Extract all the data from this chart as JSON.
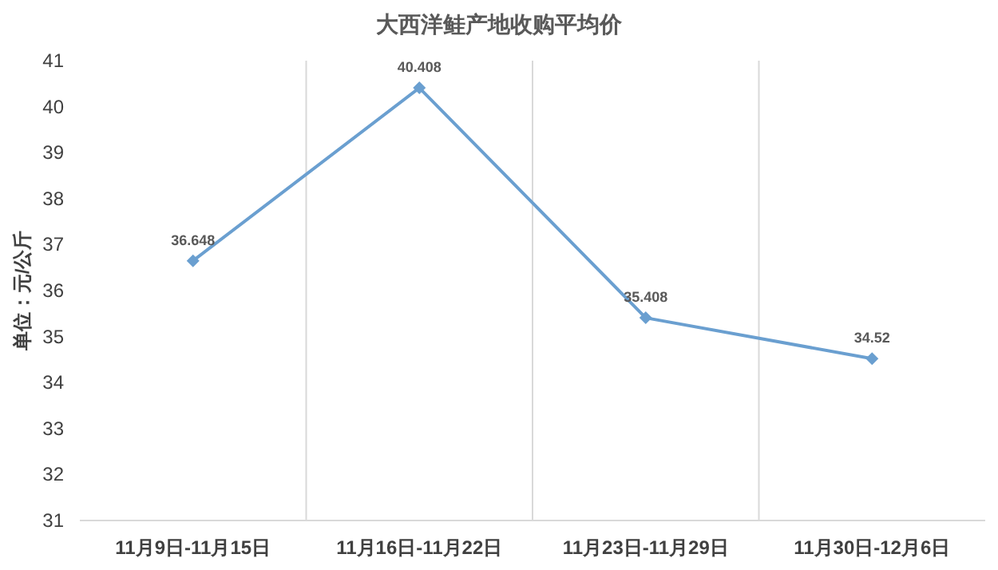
{
  "chart_data": {
    "type": "line",
    "title": "大西洋鲑产地收购平均价",
    "ylabel": "单位：元/公斤",
    "categories": [
      "11月9日-11月15日",
      "11月16日-11月22日",
      "11月23日-11月29日",
      "11月30日-12月6日"
    ],
    "series": [
      {
        "color": "#6a9fd0",
        "values": [
          36.648,
          40.408,
          35.408,
          34.52
        ]
      }
    ],
    "ylim": [
      31,
      41
    ],
    "yticks": [
      31,
      32,
      33,
      34,
      35,
      36,
      37,
      38,
      39,
      40,
      41
    ],
    "grid": "x",
    "marker": "diamond",
    "line_style": "solid",
    "data_labels": true
  }
}
